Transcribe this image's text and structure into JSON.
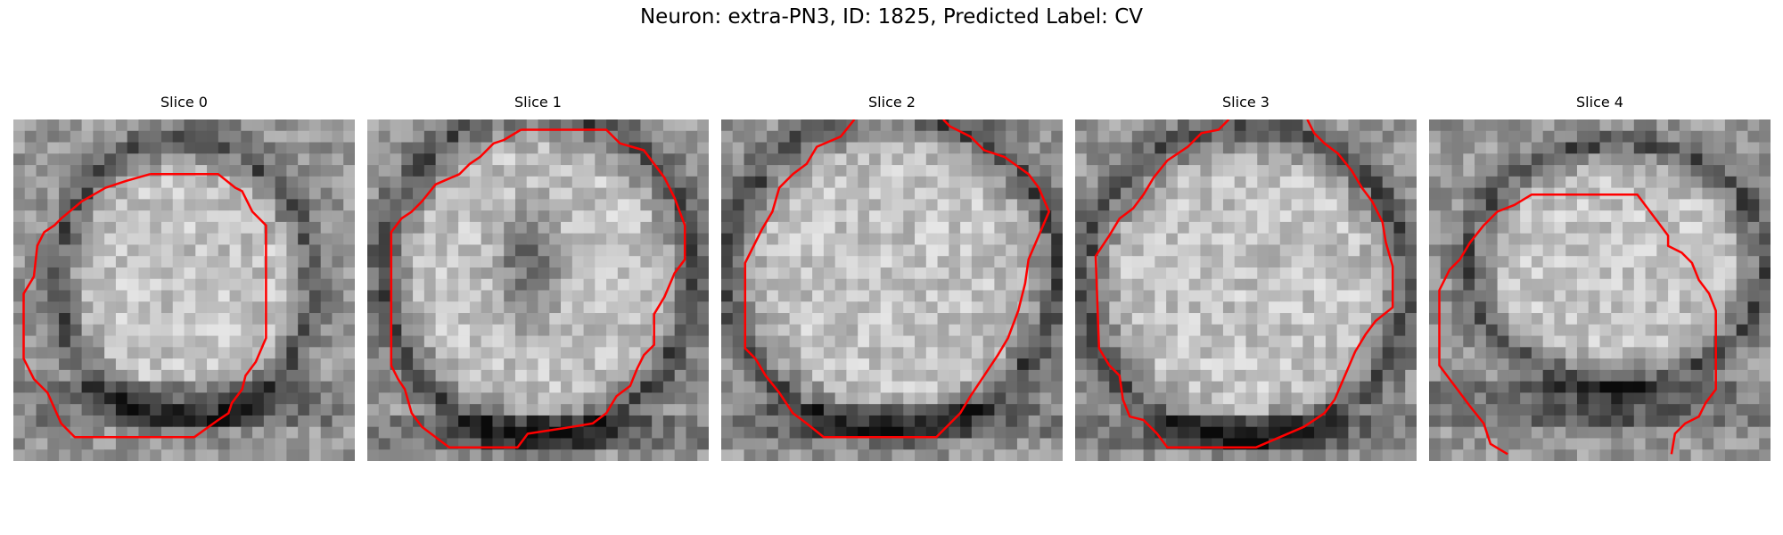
{
  "figure": {
    "title": "Neuron: extra-PN3, ID: 1825, Predicted Label: CV"
  },
  "colors": {
    "contour": "#ff0000",
    "background": "#ffffff"
  },
  "slices": [
    {
      "title": "Slice 0",
      "image": "grayscale EM crop with cell body outlined"
    },
    {
      "title": "Slice 1",
      "image": "grayscale EM crop with cell body outlined"
    },
    {
      "title": "Slice 2",
      "image": "grayscale EM crop with cell body outlined"
    },
    {
      "title": "Slice 3",
      "image": "grayscale EM crop with cell body outlined"
    },
    {
      "title": "Slice 4",
      "image": "grayscale EM crop with cell body outlined"
    }
  ]
}
